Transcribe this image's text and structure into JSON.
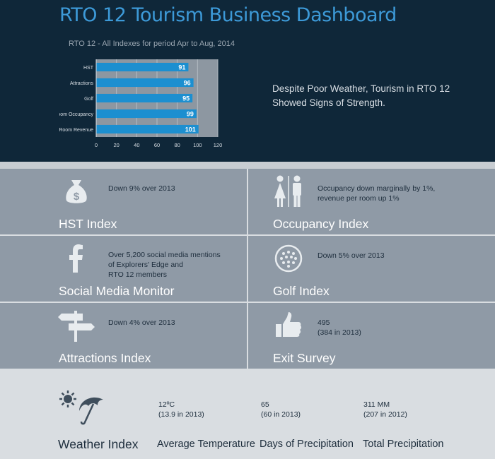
{
  "header": {
    "title": "RTO 12 Tourism Business Dashboard",
    "headline_line1": "Despite Poor Weather, Tourism in RTO 12",
    "headline_line2": "Showed Signs of Strength."
  },
  "chart_data": {
    "type": "bar",
    "orientation": "horizontal",
    "title": "RTO 12 - All Indexes for period Apr to Aug, 2014",
    "categories": [
      "HST",
      "Attractions",
      "Golf",
      "Room Occupancy",
      "Room Revenue"
    ],
    "values": [
      91,
      96,
      95,
      99,
      101
    ],
    "xlim": [
      0,
      120
    ],
    "xticks": [
      "0",
      "20",
      "40",
      "60",
      "80",
      "100",
      "120"
    ],
    "grid": true,
    "colors": {
      "bar": "#1c8fd0",
      "plot_bg": "#8d97a1",
      "label": "#ffffff"
    }
  },
  "indexes": [
    {
      "name": "HST Index",
      "desc": [
        "Down 9% over 2013"
      ],
      "icon": "money-bag-icon"
    },
    {
      "name": "Occupancy Index",
      "desc": [
        "Occupancy down marginally by 1%,",
        "revenue per room up 1%"
      ],
      "icon": "restroom-people-icon"
    },
    {
      "name": "Social Media Monitor",
      "desc": [
        "Over 5,200 social media mentions",
        "of Explorers' Edge and",
        "RTO 12 members"
      ],
      "icon": "facebook-icon"
    },
    {
      "name": "Golf Index",
      "desc": [
        "Down 5% over 2013"
      ],
      "icon": "golf-ball-icon"
    },
    {
      "name": "Attractions Index",
      "desc": [
        "Down 4% over 2013"
      ],
      "icon": "signpost-icon"
    },
    {
      "name": "Exit Survey",
      "desc": [
        "495",
        "(384 in 2013)"
      ],
      "icon": "thumbs-up-icon"
    }
  ],
  "weather": {
    "title": "Weather Index",
    "icon": "sun-umbrella-icon",
    "stats": [
      {
        "value": "12ºC",
        "previous": "(13.9 in 2013)",
        "label": "Average Temperature"
      },
      {
        "value": "65",
        "previous": "(60 in 2013)",
        "label": "Days of Precipitation"
      },
      {
        "value": "311 MM",
        "previous": "(207 in 2012)",
        "label": "Total Precipitation"
      }
    ]
  },
  "colors": {
    "header_bg": "#0f2739",
    "title": "#3d9ad8",
    "tile_bg": "#8f9aa6",
    "bottom_bg": "#d9dde1"
  }
}
